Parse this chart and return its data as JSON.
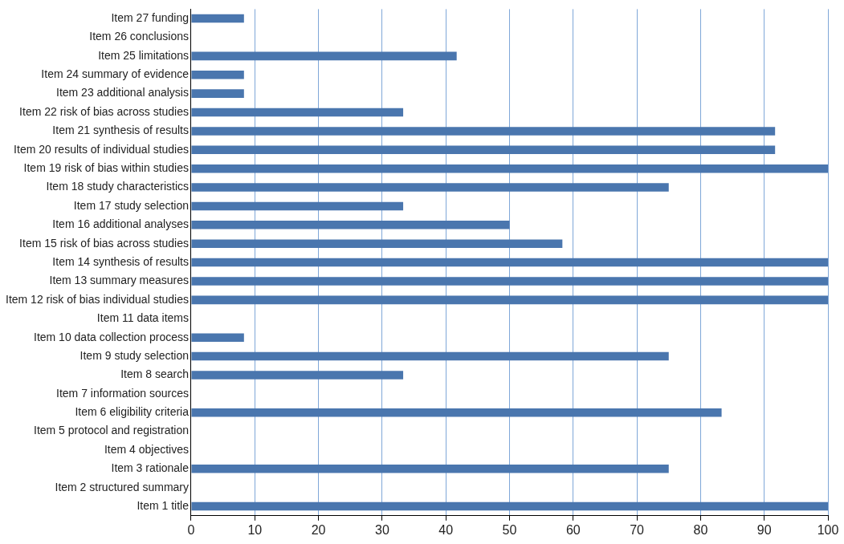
{
  "chart_data": {
    "type": "bar",
    "orientation": "horizontal",
    "categories": [
      "Item 27 funding",
      "Item 26 conclusions",
      "Item 25 limitations",
      "Item 24 summary of evidence",
      "Item 23 additional analysis",
      "Item 22 risk of bias across studies",
      "Item 21 synthesis of results",
      "Item 20 results of individual studies",
      "Item 19 risk of bias within studies",
      "Item 18 study characteristics",
      "Item 17 study selection",
      "Item 16 additional analyses",
      "Item 15 risk of bias across studies",
      "Item 14 synthesis of results",
      "Item 13 summary measures",
      "Item 12 risk of bias individual studies",
      "Item 11 data items",
      "Item 10 data collection process",
      "Item 9 study selection",
      "Item 8 search",
      "Item 7 information sources",
      "Item 6 eligibility criteria",
      "Item 5 protocol and registration",
      "Item 4 objectives",
      "Item 3 rationale",
      "Item 2 structured summary",
      "Item 1 title"
    ],
    "values": [
      8.3,
      0,
      41.7,
      8.3,
      8.3,
      33.3,
      91.7,
      91.7,
      100,
      75,
      33.3,
      50,
      58.3,
      100,
      100,
      100,
      0,
      8.3,
      75,
      33.3,
      0,
      83.3,
      0,
      0,
      75,
      0,
      100
    ],
    "color": "#4a76ae",
    "xlim": [
      0,
      100
    ],
    "xticks": [
      0,
      10,
      20,
      30,
      40,
      50,
      60,
      70,
      80,
      90,
      100
    ],
    "grid": "x"
  }
}
